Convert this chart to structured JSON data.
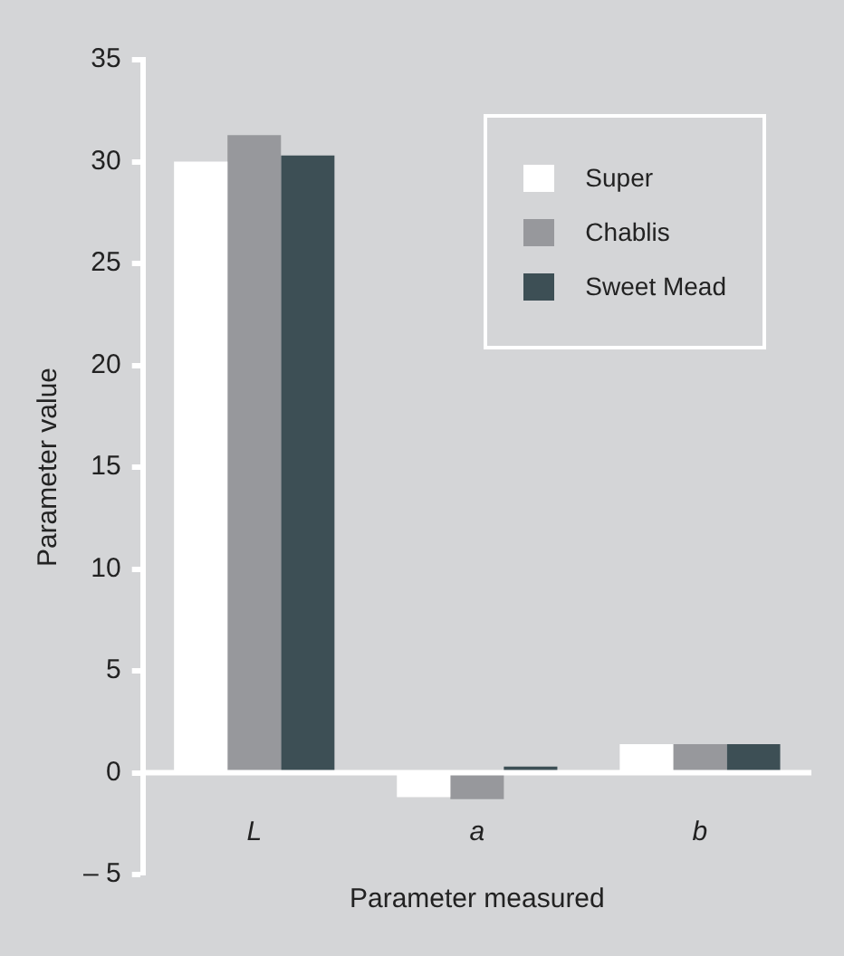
{
  "chart_data": {
    "type": "bar",
    "xlabel": "Parameter measured",
    "ylabel": "Parameter value",
    "categories": [
      "L",
      "a",
      "b"
    ],
    "series": [
      {
        "name": "Super",
        "color": "#ffffff",
        "values": [
          30,
          -1.2,
          1.4
        ]
      },
      {
        "name": "Chablis",
        "color": "#97989c",
        "values": [
          31.3,
          -1.3,
          1.4
        ]
      },
      {
        "name": "Sweet Mead",
        "color": "#3d4f55",
        "values": [
          30.3,
          0.3,
          1.4
        ]
      }
    ],
    "ylim": [
      -5,
      35
    ],
    "yticks": [
      {
        "value": -5,
        "label": "– 5"
      },
      0,
      5,
      10,
      15,
      20,
      25,
      30,
      35
    ],
    "grid": false,
    "legend": "top right"
  }
}
